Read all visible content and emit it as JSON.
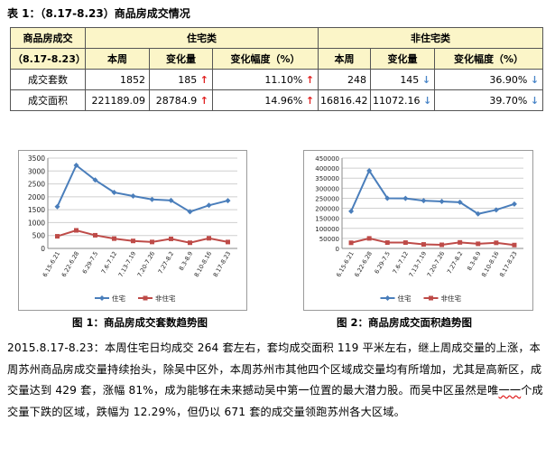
{
  "title": "表 1：（8.17-8.23）商品房成交情况",
  "table": {
    "corner": "商品房成交",
    "group_residential": "住宅类",
    "group_nonresidential": "非住宅类",
    "period": "（8.17-8.23）",
    "col_week": "本周",
    "col_change": "变化量",
    "col_change_pct": "变化幅度（%）",
    "rows": [
      {
        "label": "成交套数",
        "res_week": "1852",
        "res_change": "185",
        "res_change_dir": "up",
        "res_pct": "11.10%",
        "res_pct_dir": "up",
        "non_week": "248",
        "non_change": "145",
        "non_change_dir": "down",
        "non_pct": "36.90%",
        "non_pct_dir": "down"
      },
      {
        "label": "成交面积",
        "res_week": "221189.09",
        "res_change": "28784.9",
        "res_change_dir": "up",
        "res_pct": "14.96%",
        "res_pct_dir": "up",
        "non_week": "16816.42",
        "non_change": "11072.16",
        "non_change_dir": "down",
        "non_pct": "39.70%",
        "non_pct_dir": "down"
      }
    ]
  },
  "colors": {
    "residential": "#4a7ebb",
    "nonresidential": "#be4b48",
    "header_bg": "#fbf5c8"
  },
  "chart_data": [
    {
      "type": "line",
      "categories": [
        "6.15-6.21",
        "6.22-6.28",
        "6.29-7.5",
        "7.6-7.12",
        "7.13-7.19",
        "7.20-7.26",
        "7.27-8.2",
        "8.3-8.9",
        "8.10-8.16",
        "8.17-8.23"
      ],
      "series": [
        {
          "name": "住宅",
          "values": [
            1620,
            3220,
            2650,
            2170,
            2030,
            1900,
            1860,
            1420,
            1670,
            1852
          ]
        },
        {
          "name": "非住宅",
          "values": [
            470,
            700,
            510,
            380,
            290,
            250,
            370,
            220,
            393,
            248
          ]
        }
      ],
      "ylim": [
        0,
        3500
      ],
      "yticks": [
        "0",
        "500",
        "1000",
        "1500",
        "2000",
        "2500",
        "3000",
        "3500"
      ],
      "grid": true,
      "legend": "bottom"
    },
    {
      "type": "line",
      "categories": [
        "6.15-6.21",
        "6.22-6.28",
        "6.29-7.5",
        "7.6-7.12",
        "7.13-7.19",
        "7.20-7.26",
        "7.27-8.2",
        "8.3-8.9",
        "8.10-8.16",
        "8.17-8.23"
      ],
      "series": [
        {
          "name": "住宅",
          "values": [
            185000,
            387000,
            250000,
            249000,
            238000,
            234000,
            230000,
            172000,
            192000,
            221189
          ]
        },
        {
          "name": "非住宅",
          "values": [
            28000,
            50000,
            29000,
            29000,
            20000,
            18000,
            30000,
            23000,
            27888,
            16816
          ]
        }
      ],
      "ylim": [
        0,
        450000
      ],
      "yticks": [
        "0",
        "50000",
        "100000",
        "150000",
        "200000",
        "250000",
        "300000",
        "350000",
        "400000",
        "450000"
      ],
      "grid": true,
      "legend": "bottom"
    }
  ],
  "captions": {
    "chart1": "图 1：商品房成交套数趋势图",
    "chart2": "图 2：商品房成交面积趋势图"
  },
  "paragraph": {
    "part1": "2015.8.17-8.23：本周住宅日均成交 264 套左右，套均成交面积 119 平米左右，继上周成交量的上涨，本周苏州商品房成交量持续抬头，除吴中区外，本周苏州市其他四个区域成交量均有所增加，尤其是高新区，成交量达到 429 套，涨幅 81%，成为能够在未来撼动吴中第一位置的最大潜力股。而吴中区虽然是唯",
    "part2": "一一",
    "part3": "个成交量下跌的区域，跌幅为 12.29%，但仍以 671 套的成交量领跑苏州各大区域。"
  }
}
